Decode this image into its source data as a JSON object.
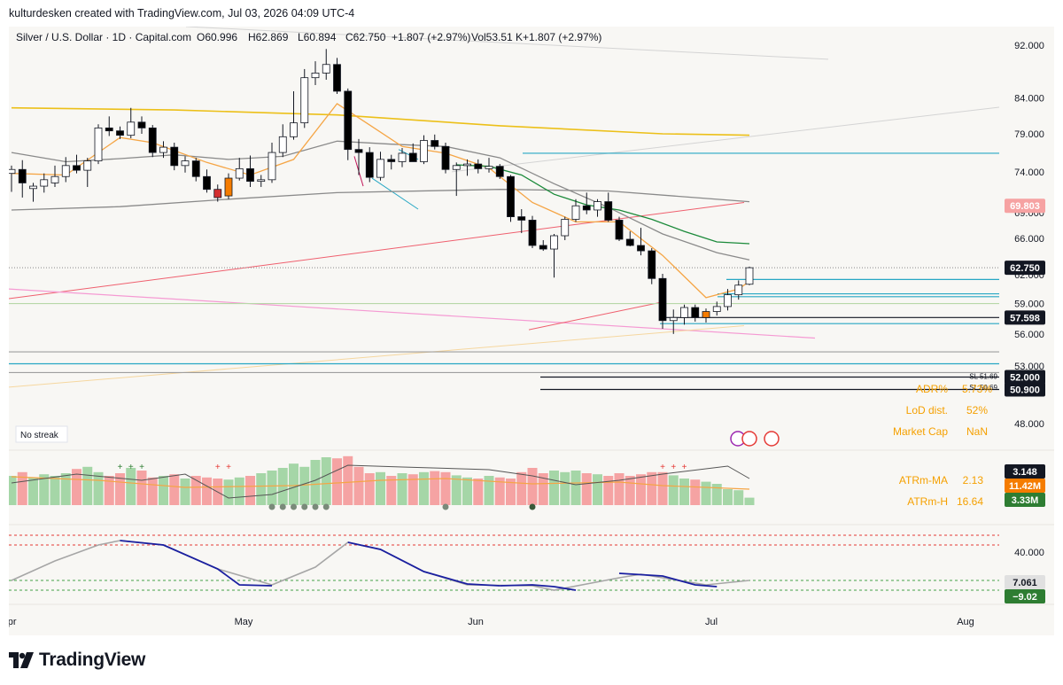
{
  "header": {
    "attribution": "kulturdesken created with TradingView.com, Jul 03, 2026 04:09 UTC-4"
  },
  "footer": {
    "brand": "TradingView"
  },
  "colors": {
    "up": "#ffffff",
    "down": "#000000",
    "orange_candle": "#f57c00",
    "red_candle": "#d32f2f",
    "ma_yellow": "#ecc019",
    "ma_orange": "#f5a545",
    "ma_gray": "#8a8a8a",
    "ma_green": "#1b8a3a",
    "cyan_level": "#27a7c4",
    "pink_line": "#f59ad3",
    "red_line": "#ef5f6e",
    "label_red": "#f6a2a2",
    "label_dark": "#131722",
    "label_orange": "#f57c00",
    "label_green": "#2e7d32",
    "osc_blue": "#1a1fa0",
    "osc_gray": "#a6a6a6"
  },
  "chart_data": {
    "type": "candlestick",
    "title": "Silver / U.S. Dollar · 1D · Capital.com",
    "ohlc_legend": {
      "open": "O60.996",
      "high": "H62.869",
      "low": "L60.894",
      "close": "C62.750",
      "change": "+1.807 (+2.97%)",
      "volume": "Vol53.51 K",
      "volume_change": "+1.807 (+2.97%)"
    },
    "x_ticks": [
      "Apr",
      "May",
      "Jun",
      "Jul",
      "Aug"
    ],
    "y_ticks": [
      "92.000",
      "84.000",
      "79.000",
      "74.000",
      "69.000",
      "66.000",
      "62.000",
      "59.000",
      "56.000",
      "53.000",
      "48.000"
    ],
    "y_scale": "log",
    "price_labels": [
      {
        "text": "69.803",
        "value": 69.803,
        "style": "red"
      },
      {
        "text": "62.750",
        "value": 62.75,
        "style": "dark"
      },
      {
        "text": "57.598",
        "value": 57.598,
        "style": "dark"
      },
      {
        "text": "52.000",
        "value": 52.0,
        "style": "dark"
      },
      {
        "text": "50.900",
        "value": 50.9,
        "style": "dark"
      }
    ],
    "level_labels": [
      {
        "text": "SL 51.69",
        "value": 51.69
      },
      {
        "text": "SL 50.69",
        "value": 50.69
      }
    ],
    "stats": [
      {
        "label": "ADR%",
        "value": "5.73%"
      },
      {
        "label": "LoD dist.",
        "value": "52%"
      },
      {
        "label": "Market Cap",
        "value": "NaN"
      }
    ],
    "streak": "No streak",
    "candles": [
      {
        "o": 73.8,
        "h": 74.8,
        "l": 71.5,
        "c": 74.3
      },
      {
        "o": 74.3,
        "h": 75.5,
        "l": 70.8,
        "c": 72.6
      },
      {
        "o": 71.9,
        "h": 72.6,
        "l": 70.3,
        "c": 72.2
      },
      {
        "o": 72.2,
        "h": 73.8,
        "l": 71.4,
        "c": 73.0
      },
      {
        "o": 72.6,
        "h": 74.8,
        "l": 72.1,
        "c": 73.4
      },
      {
        "o": 73.4,
        "h": 75.9,
        "l": 72.7,
        "c": 74.8
      },
      {
        "o": 74.8,
        "h": 76.2,
        "l": 73.8,
        "c": 74.2
      },
      {
        "o": 74.2,
        "h": 75.8,
        "l": 72.1,
        "c": 75.4
      },
      {
        "o": 75.4,
        "h": 80.3,
        "l": 75.0,
        "c": 79.8
      },
      {
        "o": 79.8,
        "h": 81.4,
        "l": 78.7,
        "c": 79.4
      },
      {
        "o": 79.4,
        "h": 80.0,
        "l": 78.3,
        "c": 78.8
      },
      {
        "o": 78.8,
        "h": 82.6,
        "l": 78.4,
        "c": 80.6
      },
      {
        "o": 80.6,
        "h": 81.4,
        "l": 79.0,
        "c": 79.8
      },
      {
        "o": 79.8,
        "h": 80.2,
        "l": 75.9,
        "c": 76.5
      },
      {
        "o": 76.5,
        "h": 78.0,
        "l": 75.8,
        "c": 77.2
      },
      {
        "o": 77.2,
        "h": 77.8,
        "l": 74.2,
        "c": 74.8
      },
      {
        "o": 74.8,
        "h": 76.0,
        "l": 73.9,
        "c": 75.4
      },
      {
        "o": 75.4,
        "h": 75.8,
        "l": 72.8,
        "c": 73.4
      },
      {
        "o": 73.4,
        "h": 74.3,
        "l": 71.4,
        "c": 71.8
      },
      {
        "o": 71.8,
        "h": 72.4,
        "l": 70.3,
        "c": 70.8
      },
      {
        "o": 71.0,
        "h": 73.8,
        "l": 70.6,
        "c": 73.2
      },
      {
        "o": 73.2,
        "h": 75.8,
        "l": 72.9,
        "c": 74.4
      },
      {
        "o": 74.4,
        "h": 76.1,
        "l": 72.1,
        "c": 72.8
      },
      {
        "o": 72.8,
        "h": 73.6,
        "l": 72.1,
        "c": 73.0
      },
      {
        "o": 73.0,
        "h": 77.8,
        "l": 72.6,
        "c": 76.5
      },
      {
        "o": 76.5,
        "h": 80.3,
        "l": 75.9,
        "c": 78.6
      },
      {
        "o": 78.6,
        "h": 85.0,
        "l": 78.2,
        "c": 80.5
      },
      {
        "o": 80.5,
        "h": 88.3,
        "l": 79.8,
        "c": 87.0
      },
      {
        "o": 87.0,
        "h": 89.5,
        "l": 85.9,
        "c": 87.7
      },
      {
        "o": 87.7,
        "h": 91.4,
        "l": 86.7,
        "c": 89.0
      },
      {
        "o": 89.0,
        "h": 90.0,
        "l": 84.6,
        "c": 85.0
      },
      {
        "o": 85.0,
        "h": 85.4,
        "l": 75.5,
        "c": 76.9
      },
      {
        "o": 76.9,
        "h": 78.3,
        "l": 73.6,
        "c": 76.5
      },
      {
        "o": 76.5,
        "h": 77.2,
        "l": 72.7,
        "c": 73.3
      },
      {
        "o": 73.3,
        "h": 76.6,
        "l": 72.9,
        "c": 75.6
      },
      {
        "o": 75.6,
        "h": 76.2,
        "l": 74.3,
        "c": 75.3
      },
      {
        "o": 75.3,
        "h": 77.1,
        "l": 74.6,
        "c": 76.4
      },
      {
        "o": 76.4,
        "h": 77.7,
        "l": 75.3,
        "c": 75.3
      },
      {
        "o": 75.3,
        "h": 78.8,
        "l": 75.0,
        "c": 78.1
      },
      {
        "o": 78.1,
        "h": 78.9,
        "l": 76.9,
        "c": 77.3
      },
      {
        "o": 77.3,
        "h": 77.8,
        "l": 73.8,
        "c": 74.3
      },
      {
        "o": 74.3,
        "h": 75.2,
        "l": 71.0,
        "c": 74.8
      },
      {
        "o": 74.8,
        "h": 75.6,
        "l": 73.5,
        "c": 75.0
      },
      {
        "o": 75.0,
        "h": 75.6,
        "l": 73.8,
        "c": 74.4
      },
      {
        "o": 74.4,
        "h": 75.8,
        "l": 73.9,
        "c": 74.7
      },
      {
        "o": 74.7,
        "h": 75.0,
        "l": 73.1,
        "c": 73.4
      },
      {
        "o": 73.4,
        "h": 73.6,
        "l": 67.9,
        "c": 68.5
      },
      {
        "o": 68.5,
        "h": 69.4,
        "l": 66.6,
        "c": 68.1
      },
      {
        "o": 68.1,
        "h": 68.6,
        "l": 64.9,
        "c": 65.2
      },
      {
        "o": 65.2,
        "h": 65.8,
        "l": 64.6,
        "c": 64.8
      },
      {
        "o": 64.8,
        "h": 66.5,
        "l": 61.7,
        "c": 66.3
      },
      {
        "o": 66.3,
        "h": 68.5,
        "l": 65.8,
        "c": 68.2
      },
      {
        "o": 68.2,
        "h": 70.6,
        "l": 67.9,
        "c": 69.8
      },
      {
        "o": 69.8,
        "h": 71.4,
        "l": 68.8,
        "c": 69.3
      },
      {
        "o": 69.3,
        "h": 70.6,
        "l": 68.5,
        "c": 70.3
      },
      {
        "o": 70.3,
        "h": 71.4,
        "l": 67.9,
        "c": 68.1
      },
      {
        "o": 68.1,
        "h": 68.5,
        "l": 65.7,
        "c": 65.9
      },
      {
        "o": 65.9,
        "h": 66.8,
        "l": 65.1,
        "c": 65.2
      },
      {
        "o": 65.2,
        "h": 67.2,
        "l": 64.1,
        "c": 64.6
      },
      {
        "o": 64.6,
        "h": 64.9,
        "l": 61.0,
        "c": 61.6
      },
      {
        "o": 61.6,
        "h": 62.1,
        "l": 56.5,
        "c": 57.3
      },
      {
        "o": 57.3,
        "h": 58.4,
        "l": 56.0,
        "c": 57.6
      },
      {
        "o": 57.6,
        "h": 58.9,
        "l": 56.9,
        "c": 58.6
      },
      {
        "o": 58.6,
        "h": 58.9,
        "l": 57.2,
        "c": 57.6
      },
      {
        "o": 57.6,
        "h": 58.5,
        "l": 57.1,
        "c": 58.2
      },
      {
        "o": 58.2,
        "h": 59.2,
        "l": 57.8,
        "c": 58.7
      },
      {
        "o": 58.7,
        "h": 60.5,
        "l": 58.3,
        "c": 59.9
      },
      {
        "o": 59.9,
        "h": 61.4,
        "l": 59.4,
        "c": 60.9
      },
      {
        "o": 60.996,
        "h": 62.869,
        "l": 60.894,
        "c": 62.75
      }
    ],
    "moving_averages": [
      {
        "color": "#ecc019",
        "points": [
          [
            0,
            82.6
          ],
          [
            15,
            82.3
          ],
          [
            30,
            81.6
          ],
          [
            45,
            80.1
          ],
          [
            60,
            79.0
          ],
          [
            68,
            78.8
          ]
        ]
      },
      {
        "color": "#8a8a8a",
        "points": [
          [
            0,
            69.3
          ],
          [
            10,
            69.7
          ],
          [
            20,
            70.6
          ],
          [
            30,
            71.4
          ],
          [
            45,
            71.8
          ],
          [
            55,
            71.6
          ],
          [
            68,
            70.3
          ]
        ]
      },
      {
        "color": "#8a8a8a",
        "points": [
          [
            0,
            76.5
          ],
          [
            5,
            75.3
          ],
          [
            10,
            75.7
          ],
          [
            15,
            76.2
          ],
          [
            20,
            75.6
          ],
          [
            25,
            76.0
          ],
          [
            30,
            78.0
          ],
          [
            35,
            77.6
          ],
          [
            40,
            77.3
          ],
          [
            45,
            75.8
          ],
          [
            50,
            72.5
          ],
          [
            55,
            69.6
          ],
          [
            60,
            66.5
          ],
          [
            65,
            64.4
          ],
          [
            68,
            63.6
          ]
        ]
      },
      {
        "color": "#f5a545",
        "points": [
          [
            0,
            73.8
          ],
          [
            5,
            73.6
          ],
          [
            10,
            78.5
          ],
          [
            13,
            77.8
          ],
          [
            18,
            75.2
          ],
          [
            22,
            73.6
          ],
          [
            26,
            75.6
          ],
          [
            30,
            83.2
          ],
          [
            33,
            80.2
          ],
          [
            36,
            77.3
          ],
          [
            40,
            76.4
          ],
          [
            44,
            74.5
          ],
          [
            48,
            70.2
          ],
          [
            52,
            67.9
          ],
          [
            56,
            67.9
          ],
          [
            60,
            64.1
          ],
          [
            64,
            59.6
          ],
          [
            67,
            60.5
          ],
          [
            68,
            61.3
          ]
        ]
      },
      {
        "color": "#1b8a3a",
        "points": [
          [
            41,
            74.9
          ],
          [
            44,
            74.7
          ],
          [
            47,
            73.6
          ],
          [
            50,
            71.2
          ],
          [
            53,
            69.9
          ],
          [
            56,
            69.3
          ],
          [
            59,
            68.2
          ],
          [
            62,
            66.8
          ],
          [
            65,
            65.6
          ],
          [
            68,
            65.4
          ]
        ]
      }
    ],
    "volume_bars": [
      0.55,
      0.62,
      0.52,
      0.58,
      0.55,
      0.6,
      0.68,
      0.72,
      0.62,
      0.55,
      0.6,
      0.7,
      0.65,
      0.52,
      0.55,
      0.58,
      0.5,
      0.55,
      0.52,
      0.5,
      0.48,
      0.52,
      0.55,
      0.6,
      0.65,
      0.7,
      0.78,
      0.72,
      0.85,
      0.9,
      0.88,
      0.92,
      0.72,
      0.6,
      0.62,
      0.55,
      0.6,
      0.58,
      0.62,
      0.64,
      0.62,
      0.56,
      0.52,
      0.5,
      0.55,
      0.52,
      0.5,
      0.62,
      0.7,
      0.6,
      0.65,
      0.62,
      0.65,
      0.6,
      0.58,
      0.55,
      0.6,
      0.55,
      0.58,
      0.62,
      0.62,
      0.56,
      0.5,
      0.48,
      0.44,
      0.4,
      0.3,
      0.28,
      0.14
    ],
    "volume_labels": [
      {
        "text": "3.148",
        "style": "dark"
      },
      {
        "text": "11.42M",
        "style": "orange"
      },
      {
        "text": "3.33M",
        "style": "green"
      }
    ],
    "atr_stats": [
      {
        "label": "ATRm-MA",
        "value": "2.13"
      },
      {
        "label": "ATRm-H",
        "value": "16.64"
      }
    ],
    "oscillator_ticks": [
      "40.000"
    ],
    "oscillator_labels": [
      {
        "text": "7.061",
        "style": "gray"
      },
      {
        "text": "−9.02",
        "style": "green"
      }
    ]
  }
}
